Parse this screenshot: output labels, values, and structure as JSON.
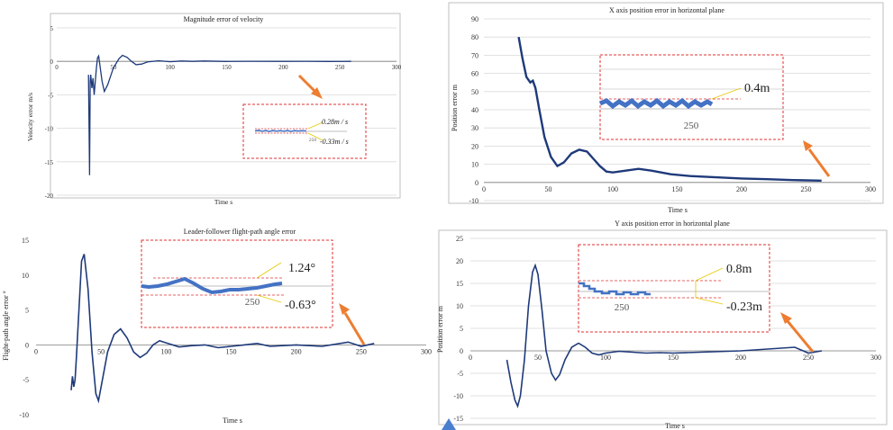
{
  "colors": {
    "line": "#1f3a7a",
    "inset_line": "#4472c4",
    "arrow": "#ed7d31",
    "grid": "#d9d9d9",
    "frame": "#bfbfbf",
    "box": "#e03030",
    "callout": "#e6c700"
  },
  "chart_data": [
    {
      "type": "line",
      "title": "Magnitude error of velocity",
      "xlabel": "Time  s",
      "ylabel": "Velocity error  m/s",
      "xlim": [
        0,
        300
      ],
      "ylim": [
        -20,
        5
      ],
      "xticks": [
        0,
        50,
        100,
        150,
        200,
        250,
        300
      ],
      "yticks": [
        5,
        0,
        -5,
        -10,
        -15,
        -20
      ],
      "series": [
        {
          "name": "velocity error",
          "x": [
            28,
            29,
            29.5,
            30,
            31,
            32,
            33,
            35,
            36,
            37,
            38,
            40,
            42,
            45,
            50,
            55,
            58,
            62,
            66,
            70,
            75,
            80,
            90,
            100,
            110,
            120,
            130,
            150,
            170,
            200,
            220,
            240,
            260
          ],
          "y": [
            -2,
            -17,
            -3,
            -2,
            -4,
            -2.5,
            -5,
            -1,
            0.5,
            0.8,
            -0.5,
            -3,
            -4.5,
            -3.5,
            -1,
            0.4,
            0.9,
            0.6,
            0,
            -0.5,
            -0.4,
            -0.1,
            0.1,
            -0.05,
            0.05,
            0,
            0.05,
            -0.02,
            0.02,
            0,
            0.01,
            -0.02,
            0
          ]
        }
      ],
      "inset": {
        "tick_label": "250",
        "upper_label": "0.28m / s",
        "lower_label": "-0.33m / s"
      }
    },
    {
      "type": "line",
      "title": "X axis position error in horizontal plane",
      "xlabel": "Time  s",
      "ylabel": "Position error  m",
      "xlim": [
        0,
        300
      ],
      "ylim": [
        -10,
        90
      ],
      "xticks": [
        0,
        50,
        100,
        150,
        200,
        250,
        300
      ],
      "yticks": [
        90,
        80,
        70,
        60,
        50,
        40,
        30,
        20,
        10,
        0,
        -10
      ],
      "series": [
        {
          "name": "x error",
          "x": [
            27,
            30,
            33,
            36,
            38,
            40,
            43,
            47,
            52,
            57,
            62,
            68,
            74,
            80,
            85,
            90,
            95,
            100,
            110,
            120,
            130,
            145,
            160,
            180,
            200,
            220,
            240,
            262
          ],
          "y": [
            80,
            68,
            58,
            55,
            56,
            52,
            40,
            25,
            14,
            9,
            11,
            16,
            18,
            17,
            13,
            9,
            6,
            5.5,
            6.5,
            7.5,
            6.5,
            4.5,
            3.5,
            2.8,
            2.2,
            1.8,
            1.3,
            1
          ]
        }
      ],
      "inset": {
        "tick_label": "250",
        "upper_label": "0.4m"
      }
    },
    {
      "type": "line",
      "title": "Leader-follower flight-path angle error",
      "xlabel": "Time  s",
      "ylabel": "Flight-path angle error  °",
      "xlim": [
        0,
        300
      ],
      "ylim": [
        -10,
        15
      ],
      "xticks": [
        0,
        50,
        100,
        150,
        200,
        250,
        300
      ],
      "yticks": [
        15,
        10,
        5,
        0,
        -5,
        -10
      ],
      "series": [
        {
          "name": "angle error",
          "x": [
            27,
            28,
            29,
            30,
            31,
            33,
            35,
            37,
            40,
            43,
            46,
            48,
            50,
            55,
            60,
            65,
            70,
            75,
            80,
            85,
            90,
            95,
            100,
            110,
            120,
            130,
            140,
            150,
            160,
            170,
            180,
            200,
            220,
            240,
            250,
            260
          ],
          "y": [
            -6.5,
            -4.5,
            -6,
            -5,
            -2,
            5,
            12,
            13,
            8,
            -1,
            -7,
            -8,
            -6,
            -1,
            1.5,
            2.3,
            1,
            -1,
            -1.8,
            -1.2,
            0,
            0.6,
            0.3,
            -0.3,
            -0.1,
            0,
            -0.4,
            -0.2,
            0,
            0.2,
            -0.2,
            0,
            -0.2,
            0.4,
            -0.2,
            0.2
          ]
        }
      ],
      "inset": {
        "tick_label": "250",
        "upper_label": "1.24°",
        "lower_label": "-0.63°"
      }
    },
    {
      "type": "line",
      "title": "Y axis position error in horizontal plane",
      "xlabel": "Time  s",
      "ylabel": "Position error  m",
      "xlim": [
        0,
        300
      ],
      "ylim": [
        -15,
        25
      ],
      "xticks": [
        0,
        50,
        100,
        150,
        200,
        250,
        300
      ],
      "yticks": [
        25,
        20,
        15,
        10,
        5,
        0,
        -5,
        -10,
        -15
      ],
      "series": [
        {
          "name": "y error",
          "x": [
            27,
            30,
            33,
            35,
            37,
            40,
            43,
            46,
            48,
            50,
            53,
            56,
            60,
            63,
            66,
            70,
            75,
            80,
            85,
            90,
            95,
            100,
            110,
            120,
            130,
            140,
            150,
            170,
            200,
            220,
            240,
            250,
            260
          ],
          "y": [
            -2,
            -7,
            -11,
            -12.3,
            -10,
            -2,
            10,
            17.5,
            19,
            17,
            9,
            0,
            -5,
            -6.5,
            -5.3,
            -2,
            0.8,
            1.7,
            0.8,
            -0.5,
            -0.9,
            -0.5,
            -0.1,
            -0.3,
            -0.5,
            -0.4,
            -0.5,
            -0.3,
            0,
            0.4,
            0.8,
            -0.5,
            0
          ]
        }
      ],
      "inset": {
        "tick_label": "250",
        "upper_label": "0.8m",
        "lower_label": "-0.23m"
      }
    }
  ],
  "footer_mark": "diamond"
}
